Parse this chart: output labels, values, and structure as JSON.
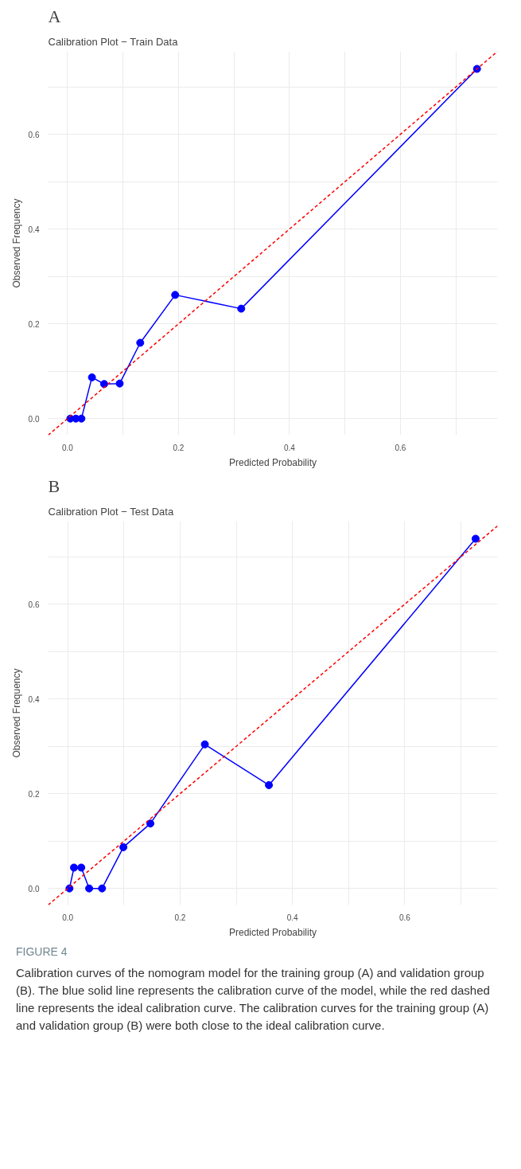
{
  "chart_data": [
    {
      "type": "line",
      "title": "Calibration Plot − Train Data",
      "xlabel": "Predicted Probability",
      "ylabel": "Observed Frequency",
      "annotations": [
        "A"
      ],
      "xlim": [
        -0.035,
        0.775
      ],
      "ylim": [
        -0.035,
        0.775
      ],
      "xticks": [
        {
          "value": 0,
          "label": "0.0"
        },
        {
          "value": 0.1,
          "label": null
        },
        0.2,
        {
          "value": 0.3,
          "label": null
        },
        0.4,
        {
          "value": 0.5,
          "label": null
        },
        0.6,
        {
          "value": 0.7,
          "label": null
        }
      ],
      "yticks": [
        {
          "value": 0,
          "label": "0.0"
        },
        {
          "value": 0.1,
          "label": null
        },
        0.2,
        {
          "value": 0.3,
          "label": null
        },
        0.4,
        {
          "value": 0.5,
          "label": null
        },
        0.6,
        {
          "value": 0.7,
          "label": null
        }
      ],
      "grid": true,
      "marker": "circle",
      "line_style": "solid",
      "series": [
        {
          "color": "#0000ff",
          "x": [
            0.005,
            0.015,
            0.025,
            0.044,
            0.066,
            0.094,
            0.131,
            0.194,
            0.313,
            0.738
          ],
          "values": [
            0,
            0,
            0,
            0.087,
            0.073,
            0.074,
            0.16,
            0.261,
            0.232,
            0.738
          ]
        },
        {
          "type": "line",
          "color": "#ff0000",
          "line_style": "dashed",
          "marker": "none",
          "x": [
            -0.035,
            0.775
          ],
          "values": [
            -0.035,
            0.775
          ]
        }
      ]
    },
    {
      "type": "line",
      "title": "Calibration Plot − Test Data",
      "xlabel": "Predicted Probability",
      "ylabel": "Observed Frequency",
      "annotations": [
        "B",
        "FIGURE 4",
        "Calibration curves of the nomogram model for the training group (A) and validation group (B). The blue solid line represents the calibration curve of the model, while the red dashed line represents the ideal calibration curve. The calibration curves for the training group (A) and validation group (B) were both close to the ideal calibration curve."
      ],
      "xlim": [
        -0.035,
        0.765
      ],
      "ylim": [
        -0.035,
        0.775
      ],
      "xticks": [
        {
          "value": 0,
          "label": "0.0"
        },
        {
          "value": 0.1,
          "label": null
        },
        0.2,
        {
          "value": 0.3,
          "label": null
        },
        0.4,
        {
          "value": 0.5,
          "label": null
        },
        0.6,
        {
          "value": 0.7,
          "label": null
        }
      ],
      "yticks": [
        {
          "value": 0,
          "label": "0.0"
        },
        {
          "value": 0.1,
          "label": null
        },
        0.2,
        {
          "value": 0.3,
          "label": null
        },
        0.4,
        {
          "value": 0.5,
          "label": null
        },
        0.6,
        {
          "value": 0.7,
          "label": null
        }
      ],
      "grid": true,
      "marker": "circle",
      "line_style": "solid",
      "series": [
        {
          "color": "#0000ff",
          "x": [
            0.003,
            0.011,
            0.024,
            0.038,
            0.061,
            0.099,
            0.147,
            0.244,
            0.358,
            0.726
          ],
          "values": [
            0,
            0.044,
            0.044,
            0,
            0,
            0.087,
            0.137,
            0.304,
            0.218,
            0.738
          ]
        },
        {
          "type": "line",
          "color": "#ff0000",
          "line_style": "dashed",
          "marker": "none",
          "x": [
            -0.035,
            0.765
          ],
          "values": [
            -0.035,
            0.765
          ]
        }
      ]
    }
  ]
}
